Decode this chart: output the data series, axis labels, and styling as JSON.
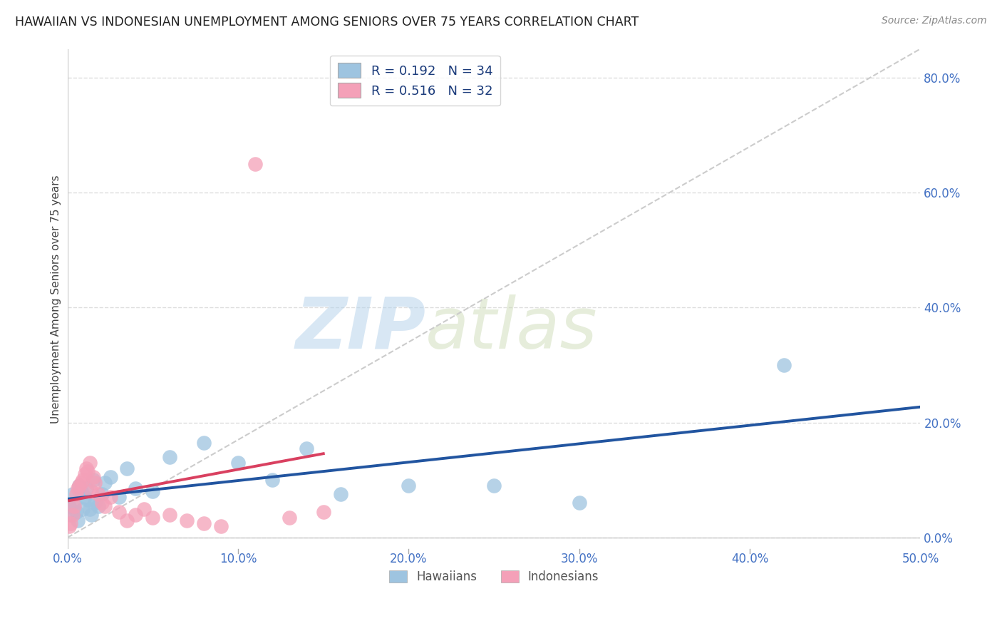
{
  "title": "HAWAIIAN VS INDONESIAN UNEMPLOYMENT AMONG SENIORS OVER 75 YEARS CORRELATION CHART",
  "source": "Source: ZipAtlas.com",
  "ylabel": "Unemployment Among Seniors over 75 years",
  "xlim": [
    0.0,
    0.5
  ],
  "ylim": [
    -0.02,
    0.85
  ],
  "xticks": [
    0.0,
    0.1,
    0.2,
    0.3,
    0.4,
    0.5
  ],
  "xtick_labels": [
    "0.0%",
    "10.0%",
    "20.0%",
    "30.0%",
    "40.0%",
    "50.0%"
  ],
  "yticks": [
    0.0,
    0.2,
    0.4,
    0.6,
    0.8
  ],
  "ytick_labels": [
    "0.0%",
    "20.0%",
    "40.0%",
    "60.0%",
    "80.0%"
  ],
  "tick_color": "#4472c4",
  "hawaiian_color": "#9ec4e0",
  "indonesian_color": "#f4a0b8",
  "hawaiian_line_color": "#2255a0",
  "indonesian_line_color": "#d94060",
  "diagonal_color": "#cccccc",
  "r_hawaiian": 0.192,
  "n_hawaiian": 34,
  "r_indonesian": 0.516,
  "n_indonesian": 32,
  "watermark_zip": "ZIP",
  "watermark_atlas": "atlas",
  "background_color": "#ffffff",
  "grid_color": "#dddddd",
  "hawaiian_x": [
    0.001,
    0.002,
    0.003,
    0.004,
    0.005,
    0.006,
    0.007,
    0.008,
    0.009,
    0.01,
    0.011,
    0.012,
    0.013,
    0.014,
    0.015,
    0.016,
    0.018,
    0.02,
    0.022,
    0.025,
    0.03,
    0.035,
    0.04,
    0.05,
    0.06,
    0.08,
    0.1,
    0.12,
    0.14,
    0.16,
    0.2,
    0.25,
    0.3,
    0.42
  ],
  "hawaiian_y": [
    0.055,
    0.04,
    0.075,
    0.06,
    0.045,
    0.03,
    0.09,
    0.08,
    0.05,
    0.07,
    0.085,
    0.065,
    0.05,
    0.04,
    0.1,
    0.06,
    0.055,
    0.075,
    0.095,
    0.105,
    0.07,
    0.12,
    0.085,
    0.08,
    0.14,
    0.165,
    0.13,
    0.1,
    0.155,
    0.075,
    0.09,
    0.09,
    0.06,
    0.3
  ],
  "indonesian_x": [
    0.001,
    0.002,
    0.003,
    0.004,
    0.005,
    0.006,
    0.007,
    0.008,
    0.009,
    0.01,
    0.011,
    0.012,
    0.013,
    0.014,
    0.015,
    0.016,
    0.018,
    0.02,
    0.022,
    0.025,
    0.03,
    0.035,
    0.04,
    0.045,
    0.05,
    0.06,
    0.07,
    0.08,
    0.09,
    0.11,
    0.13,
    0.15
  ],
  "indonesian_y": [
    0.02,
    0.025,
    0.04,
    0.055,
    0.075,
    0.085,
    0.09,
    0.095,
    0.1,
    0.11,
    0.12,
    0.115,
    0.13,
    0.08,
    0.105,
    0.095,
    0.075,
    0.06,
    0.055,
    0.07,
    0.045,
    0.03,
    0.04,
    0.05,
    0.035,
    0.04,
    0.03,
    0.025,
    0.02,
    0.65,
    0.035,
    0.045
  ]
}
